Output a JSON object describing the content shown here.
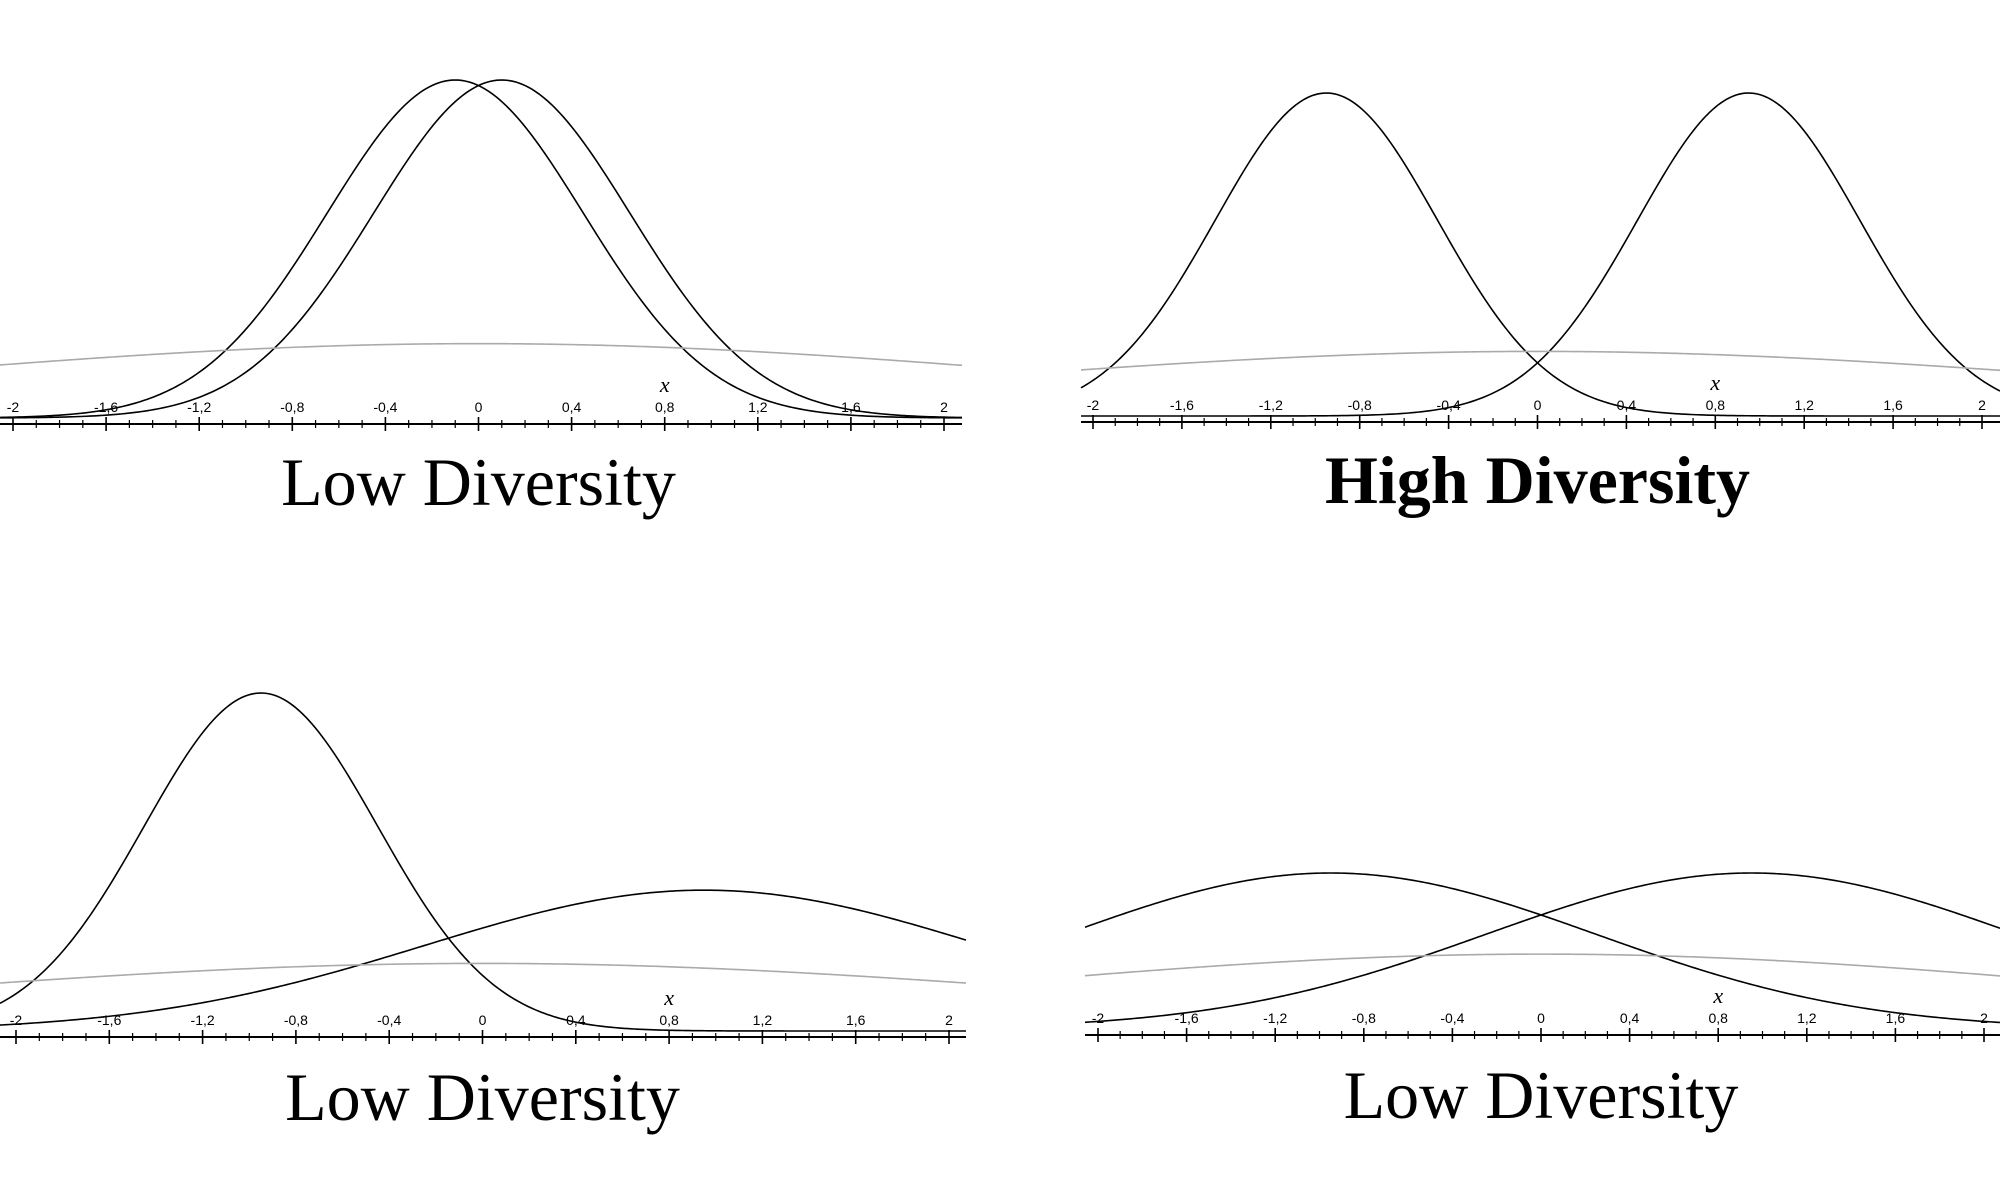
{
  "chart_data": [
    {
      "type": "line",
      "title": "Low Diversity",
      "title_bold": false,
      "xlabel": "x",
      "xlim": [
        -2,
        2
      ],
      "x_ticks": [
        "-2",
        "-1,6",
        "-1,2",
        "-0,8",
        "-0,4",
        "0",
        "0,4",
        "0,8",
        "1,2",
        "1,6",
        "2"
      ],
      "series": [
        {
          "mean": -0.1,
          "sd": 0.55,
          "color": "#000000"
        },
        {
          "mean": 0.1,
          "sd": 0.55,
          "color": "#000000"
        },
        {
          "mean": 0.0,
          "sd": 2.5,
          "color": "#aaaaaa"
        }
      ]
    },
    {
      "type": "line",
      "title": "High Diversity",
      "title_bold": true,
      "xlabel": "x",
      "xlim": [
        -2,
        2
      ],
      "x_ticks": [
        "-2",
        "-1,6",
        "-1,2",
        "-0,8",
        "-0,4",
        "0",
        "0,4",
        "0,8",
        "1,2",
        "1,6",
        "2"
      ],
      "series": [
        {
          "mean": -0.95,
          "sd": 0.5,
          "color": "#000000"
        },
        {
          "mean": 0.95,
          "sd": 0.5,
          "color": "#000000"
        },
        {
          "mean": 0.0,
          "sd": 2.5,
          "color": "#aaaaaa"
        }
      ]
    },
    {
      "type": "line",
      "title": "Low Diversity",
      "title_bold": false,
      "xlabel": "x",
      "xlim": [
        -2,
        2
      ],
      "x_ticks": [
        "-2",
        "-1,6",
        "-1,2",
        "-0,8",
        "-0,4",
        "0",
        "0,4",
        "0,8",
        "1,2",
        "1,6",
        "2"
      ],
      "series": [
        {
          "mean": -0.95,
          "sd": 0.5,
          "color": "#000000"
        },
        {
          "mean": 0.95,
          "sd": 1.2,
          "color": "#000000"
        },
        {
          "mean": 0.0,
          "sd": 2.5,
          "color": "#aaaaaa"
        }
      ]
    },
    {
      "type": "line",
      "title": "Low Diversity",
      "title_bold": false,
      "xlabel": "x",
      "xlim": [
        -2,
        2
      ],
      "x_ticks": [
        "-2",
        "-1,6",
        "-1,2",
        "-0,8",
        "-0,4",
        "0",
        "0,4",
        "0,8",
        "1,2",
        "1,6",
        "2"
      ],
      "series": [
        {
          "mean": -0.95,
          "sd": 1.2,
          "color": "#000000"
        },
        {
          "mean": 0.95,
          "sd": 1.2,
          "color": "#000000"
        },
        {
          "mean": 0.0,
          "sd": 2.5,
          "color": "#aaaaaa"
        }
      ]
    }
  ]
}
